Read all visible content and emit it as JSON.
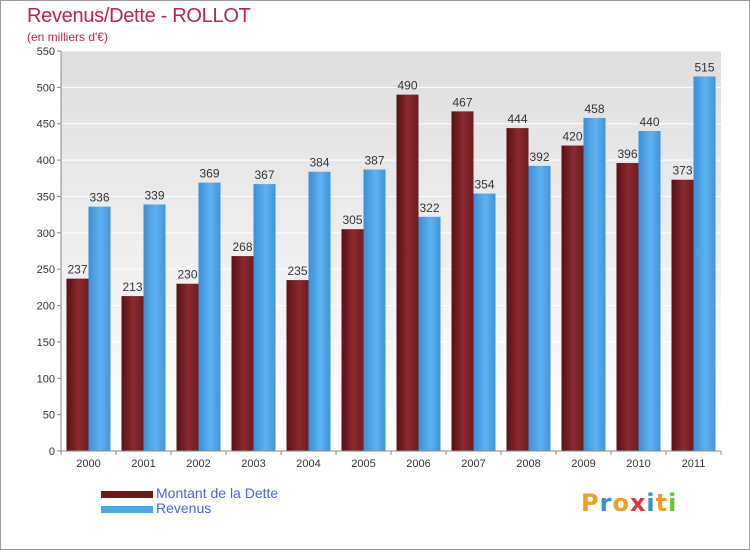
{
  "title": "Revenus/Dette - ROLLOT",
  "subtitle": "(en milliers d'€)",
  "logo": {
    "text": "Proxiti",
    "letters": [
      "P",
      "r",
      "o",
      "x",
      "i",
      "t",
      "i"
    ],
    "colors": [
      "#f0a020",
      "#3a8fd0",
      "#f0a020",
      "#d83a3a",
      "#3a8fd0",
      "#f0a020",
      "#6cbf3a"
    ]
  },
  "colors": {
    "dette": "#7b2226",
    "revenus": "#4fa6e6",
    "title": "#b5264a",
    "legend_text": "#4a63d6"
  },
  "chart_data": {
    "type": "bar",
    "title": "Revenus/Dette - ROLLOT",
    "ylabel": "(en milliers d'€)",
    "categories": [
      "2000",
      "2001",
      "2002",
      "2003",
      "2004",
      "2005",
      "2006",
      "2007",
      "2008",
      "2009",
      "2010",
      "2011"
    ],
    "series": [
      {
        "name": "Montant de la Dette",
        "color": "#7b2226",
        "values": [
          237,
          213,
          230,
          268,
          235,
          305,
          490,
          467,
          444,
          420,
          396,
          373
        ]
      },
      {
        "name": "Revenus",
        "color": "#4fa6e6",
        "values": [
          336,
          339,
          369,
          367,
          384,
          387,
          322,
          354,
          392,
          458,
          440,
          515
        ]
      }
    ],
    "ylim": [
      0,
      550
    ],
    "yticks": [
      0,
      50,
      100,
      150,
      200,
      250,
      300,
      350,
      400,
      450,
      500,
      550
    ],
    "grid": true,
    "legend": "bottom-left"
  }
}
